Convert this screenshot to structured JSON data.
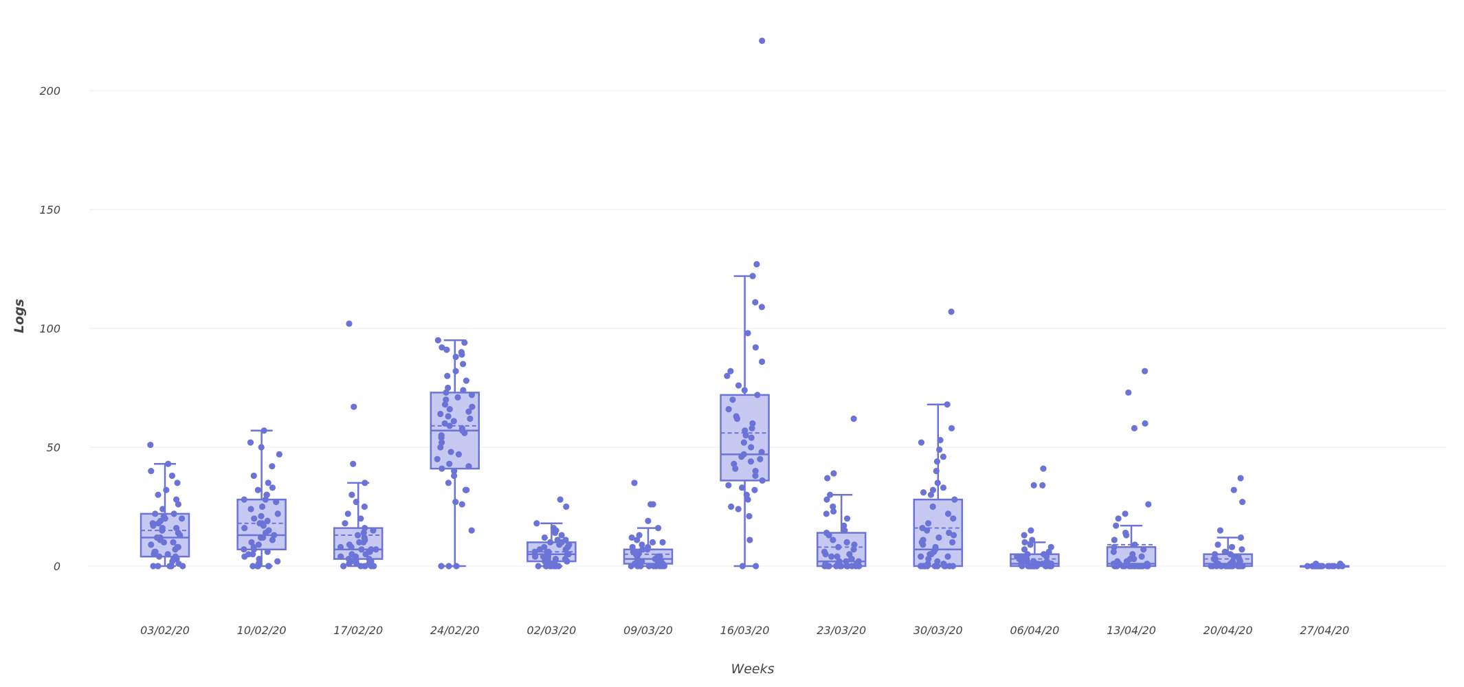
{
  "chart_data": {
    "type": "box",
    "xlabel": "Weeks",
    "ylabel": "Logs",
    "ylim": [
      -25,
      225
    ],
    "yticks": [
      0,
      50,
      100,
      150,
      200
    ],
    "ytick_labels": [
      "0",
      "50",
      "100",
      "150",
      "200"
    ],
    "grid": true,
    "boxpoints": "all",
    "color": "#6b74d6",
    "fill": "#bcc0f0",
    "categories": [
      "03/02/20",
      "10/02/20",
      "17/02/20",
      "24/02/20",
      "02/03/20",
      "09/03/20",
      "16/03/20",
      "23/03/20",
      "30/03/20",
      "06/04/20",
      "13/04/20",
      "20/04/20",
      "27/04/20"
    ],
    "boxes": [
      {
        "category": "03/02/20",
        "lowerfence": 0,
        "q1": 4,
        "median": 12,
        "mean": 15,
        "q3": 22,
        "upperfence": 43,
        "points": [
          0,
          0,
          0,
          0,
          0,
          0,
          0,
          1,
          2,
          3,
          3,
          4,
          4,
          5,
          5,
          6,
          6,
          7,
          8,
          8,
          9,
          10,
          10,
          11,
          12,
          12,
          13,
          14,
          15,
          16,
          16,
          17,
          18,
          18,
          19,
          20,
          20,
          21,
          22,
          22,
          24,
          26,
          28,
          30,
          32,
          35,
          38,
          40,
          43,
          51
        ]
      },
      {
        "category": "10/02/20",
        "lowerfence": 0,
        "q1": 7,
        "median": 13,
        "mean": 18,
        "q3": 28,
        "upperfence": 57,
        "points": [
          0,
          0,
          0,
          0,
          0,
          0,
          1,
          2,
          3,
          4,
          5,
          5,
          6,
          7,
          7,
          8,
          9,
          10,
          11,
          12,
          12,
          13,
          14,
          15,
          16,
          17,
          18,
          18,
          19,
          20,
          21,
          22,
          24,
          25,
          27,
          28,
          28,
          30,
          30,
          32,
          33,
          35,
          38,
          42,
          47,
          50,
          52,
          57
        ]
      },
      {
        "category": "17/02/20",
        "lowerfence": 0,
        "q1": 3,
        "median": 7,
        "mean": 13,
        "q3": 16,
        "upperfence": 35,
        "points": [
          0,
          0,
          0,
          0,
          0,
          0,
          0,
          1,
          1,
          1,
          2,
          2,
          3,
          3,
          3,
          4,
          4,
          5,
          5,
          6,
          6,
          7,
          7,
          7,
          8,
          8,
          9,
          10,
          10,
          11,
          12,
          13,
          14,
          15,
          16,
          18,
          20,
          22,
          25,
          27,
          30,
          35,
          43,
          67,
          102
        ]
      },
      {
        "category": "24/02/20",
        "lowerfence": 0,
        "q1": 41,
        "median": 57,
        "mean": 59,
        "q3": 73,
        "upperfence": 95,
        "points": [
          0,
          0,
          0,
          15,
          26,
          27,
          32,
          32,
          35,
          38,
          40,
          41,
          42,
          43,
          45,
          47,
          48,
          50,
          52,
          54,
          55,
          56,
          57,
          58,
          59,
          60,
          61,
          62,
          63,
          64,
          65,
          66,
          67,
          68,
          70,
          71,
          72,
          73,
          74,
          75,
          78,
          80,
          82,
          85,
          88,
          89,
          90,
          91,
          92,
          94,
          95
        ]
      },
      {
        "category": "02/03/20",
        "lowerfence": 0,
        "q1": 2,
        "median": 5,
        "mean": 6,
        "q3": 10,
        "upperfence": 18,
        "points": [
          0,
          0,
          0,
          0,
          0,
          0,
          0,
          0,
          1,
          1,
          1,
          2,
          2,
          2,
          3,
          3,
          3,
          4,
          4,
          4,
          5,
          5,
          5,
          6,
          6,
          6,
          7,
          7,
          8,
          8,
          9,
          9,
          10,
          10,
          11,
          11,
          12,
          13,
          14,
          15,
          16,
          18,
          25,
          28
        ]
      },
      {
        "category": "09/03/20",
        "lowerfence": 0,
        "q1": 1,
        "median": 3,
        "mean": 5,
        "q3": 7,
        "upperfence": 16,
        "points": [
          0,
          0,
          0,
          0,
          0,
          0,
          0,
          0,
          0,
          1,
          1,
          1,
          1,
          2,
          2,
          2,
          2,
          3,
          3,
          3,
          4,
          4,
          4,
          5,
          5,
          6,
          6,
          7,
          7,
          8,
          8,
          9,
          10,
          10,
          11,
          12,
          13,
          16,
          19,
          26,
          26,
          35
        ]
      },
      {
        "category": "16/03/20",
        "lowerfence": 0,
        "q1": 36,
        "median": 47,
        "mean": 56,
        "q3": 72,
        "upperfence": 122,
        "points": [
          0,
          0,
          11,
          21,
          24,
          25,
          28,
          30,
          32,
          33,
          34,
          36,
          38,
          40,
          41,
          43,
          44,
          45,
          46,
          47,
          48,
          50,
          52,
          54,
          55,
          57,
          58,
          60,
          62,
          63,
          66,
          70,
          72,
          74,
          76,
          80,
          82,
          86,
          92,
          98,
          109,
          111,
          122,
          127,
          221
        ]
      },
      {
        "category": "23/03/20",
        "lowerfence": 0,
        "q1": 0,
        "median": 2,
        "mean": 8,
        "q3": 14,
        "upperfence": 30,
        "points": [
          0,
          0,
          0,
          0,
          0,
          0,
          0,
          0,
          0,
          0,
          0,
          0,
          0,
          0,
          1,
          1,
          1,
          1,
          2,
          2,
          2,
          3,
          3,
          4,
          4,
          5,
          5,
          6,
          7,
          8,
          9,
          10,
          11,
          13,
          14,
          15,
          17,
          20,
          22,
          23,
          25,
          28,
          30,
          37,
          39,
          62
        ]
      },
      {
        "category": "30/03/20",
        "lowerfence": 0,
        "q1": 0,
        "median": 7,
        "mean": 16,
        "q3": 28,
        "upperfence": 68,
        "points": [
          0,
          0,
          0,
          0,
          0,
          0,
          0,
          0,
          0,
          0,
          0,
          0,
          1,
          1,
          2,
          3,
          4,
          4,
          5,
          5,
          6,
          7,
          8,
          9,
          10,
          10,
          11,
          12,
          13,
          14,
          15,
          16,
          18,
          20,
          22,
          25,
          28,
          30,
          31,
          32,
          33,
          35,
          40,
          44,
          46,
          49,
          52,
          53,
          58,
          68,
          107
        ]
      },
      {
        "category": "06/04/20",
        "lowerfence": 0,
        "q1": 0,
        "median": 1,
        "mean": 3,
        "q3": 5,
        "upperfence": 10,
        "points": [
          0,
          0,
          0,
          0,
          0,
          0,
          0,
          0,
          0,
          0,
          0,
          0,
          0,
          0,
          0,
          0,
          0,
          1,
          1,
          1,
          1,
          1,
          2,
          2,
          2,
          2,
          3,
          3,
          3,
          4,
          4,
          4,
          5,
          5,
          6,
          7,
          8,
          9,
          10,
          11,
          13,
          15,
          34,
          34,
          41
        ]
      },
      {
        "category": "13/04/20",
        "lowerfence": 0,
        "q1": 0,
        "median": 1,
        "mean": 9,
        "q3": 8,
        "upperfence": 17,
        "points": [
          0,
          0,
          0,
          0,
          0,
          0,
          0,
          0,
          0,
          0,
          0,
          0,
          0,
          0,
          0,
          0,
          0,
          0,
          0,
          1,
          1,
          1,
          1,
          2,
          2,
          2,
          3,
          3,
          4,
          5,
          6,
          7,
          8,
          9,
          11,
          13,
          14,
          17,
          20,
          22,
          26,
          58,
          60,
          73,
          82
        ]
      },
      {
        "category": "20/04/20",
        "lowerfence": 0,
        "q1": 0,
        "median": 1,
        "mean": 3,
        "q3": 5,
        "upperfence": 12,
        "points": [
          0,
          0,
          0,
          0,
          0,
          0,
          0,
          0,
          0,
          0,
          0,
          0,
          0,
          0,
          0,
          0,
          0,
          1,
          1,
          1,
          1,
          2,
          2,
          2,
          3,
          3,
          3,
          4,
          4,
          5,
          5,
          6,
          7,
          8,
          9,
          12,
          15,
          27,
          32,
          37
        ]
      },
      {
        "category": "27/04/20",
        "lowerfence": 0,
        "q1": 0,
        "median": 0,
        "mean": 0,
        "q3": 0,
        "upperfence": 0,
        "points": [
          0,
          0,
          0,
          0,
          0,
          0,
          0,
          0,
          0,
          0,
          0,
          0,
          0,
          0,
          0,
          0,
          0,
          0,
          0,
          0,
          0,
          1,
          1
        ]
      }
    ]
  }
}
